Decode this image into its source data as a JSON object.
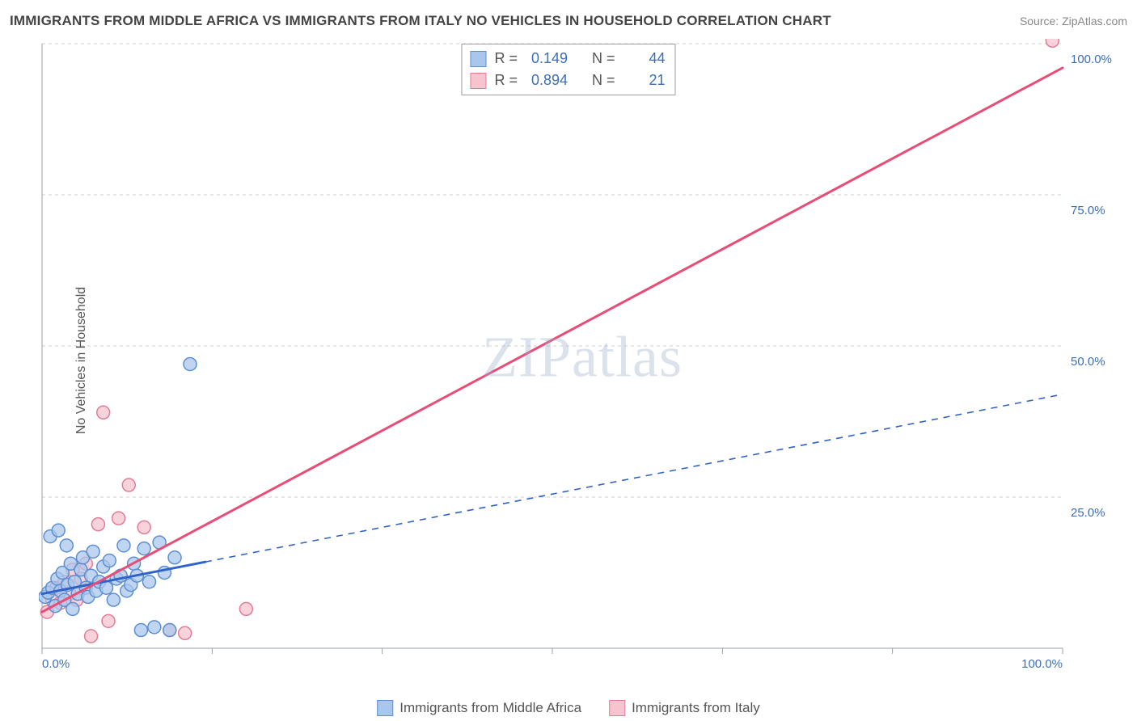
{
  "title": "IMMIGRANTS FROM MIDDLE AFRICA VS IMMIGRANTS FROM ITALY NO VEHICLES IN HOUSEHOLD CORRELATION CHART",
  "source": "Source: ZipAtlas.com",
  "watermark": "ZIPatlas",
  "ylabel": "No Vehicles in Household",
  "chart": {
    "type": "scatter-correlation",
    "background_color": "#ffffff",
    "grid_color": "#cfcfcf",
    "axis_color": "#9aa0a6",
    "axis_label_color": "#3b6fb6",
    "xlim": [
      0,
      100
    ],
    "ylim": [
      0,
      100
    ],
    "x_ticks": [
      0,
      16.67,
      33.33,
      50,
      66.67,
      83.33,
      100
    ],
    "x_tick_labels_shown": {
      "0": "0.0%",
      "100": "100.0%"
    },
    "y_ticks": [
      0,
      25,
      50,
      75,
      100
    ],
    "y_tick_labels": [
      "",
      "25.0%",
      "50.0%",
      "75.0%",
      "100.0%"
    ],
    "marker_radius": 8,
    "marker_stroke_width": 1.5,
    "trend_line_width": 2
  },
  "series": {
    "africa": {
      "label": "Immigrants from Middle Africa",
      "fill": "#a9c7ec",
      "stroke": "#5e8fd0",
      "trend_color": "#2f63c9",
      "trend_solid_to_x": 16,
      "trend_y_at_0": 9,
      "trend_y_at_100": 42,
      "r": "0.149",
      "n": "44",
      "points": [
        [
          0.3,
          8.5
        ],
        [
          0.6,
          9.2
        ],
        [
          1.0,
          10.0
        ],
        [
          1.3,
          7.0
        ],
        [
          1.5,
          11.5
        ],
        [
          1.8,
          9.5
        ],
        [
          2.0,
          12.5
        ],
        [
          2.2,
          8.0
        ],
        [
          2.5,
          10.5
        ],
        [
          2.8,
          14.0
        ],
        [
          3.0,
          6.5
        ],
        [
          3.2,
          11.0
        ],
        [
          3.5,
          9.0
        ],
        [
          3.8,
          13.0
        ],
        [
          4.0,
          15.0
        ],
        [
          4.3,
          10.0
        ],
        [
          4.5,
          8.5
        ],
        [
          4.8,
          12.0
        ],
        [
          5.0,
          16.0
        ],
        [
          5.3,
          9.5
        ],
        [
          5.6,
          11.0
        ],
        [
          6.0,
          13.5
        ],
        [
          6.3,
          10.0
        ],
        [
          6.6,
          14.5
        ],
        [
          7.0,
          8.0
        ],
        [
          7.3,
          11.5
        ],
        [
          7.7,
          12.0
        ],
        [
          8.0,
          17.0
        ],
        [
          8.3,
          9.5
        ],
        [
          8.7,
          10.5
        ],
        [
          9.0,
          14.0
        ],
        [
          9.3,
          12.0
        ],
        [
          9.7,
          3.0
        ],
        [
          10.0,
          16.5
        ],
        [
          10.5,
          11.0
        ],
        [
          11.0,
          3.5
        ],
        [
          11.5,
          17.5
        ],
        [
          12.0,
          12.5
        ],
        [
          12.5,
          3.0
        ],
        [
          13.0,
          15.0
        ],
        [
          0.8,
          18.5
        ],
        [
          1.6,
          19.5
        ],
        [
          2.4,
          17.0
        ],
        [
          14.5,
          47.0
        ]
      ]
    },
    "italy": {
      "label": "Immigrants from Italy",
      "fill": "#f6c4cf",
      "stroke": "#e27d95",
      "trend_color": "#e84d78",
      "trend_solid_to_x": 100,
      "trend_y_at_0": 6,
      "trend_y_at_100": 96,
      "r": "0.894",
      "n": "21",
      "points": [
        [
          0.5,
          6.0
        ],
        [
          1.0,
          8.0
        ],
        [
          1.4,
          10.0
        ],
        [
          1.8,
          7.5
        ],
        [
          2.2,
          11.0
        ],
        [
          2.7,
          9.0
        ],
        [
          3.0,
          13.0
        ],
        [
          3.4,
          8.0
        ],
        [
          3.8,
          11.5
        ],
        [
          4.3,
          14.0
        ],
        [
          4.8,
          2.0
        ],
        [
          5.5,
          20.5
        ],
        [
          6.0,
          39.0
        ],
        [
          6.5,
          4.5
        ],
        [
          7.5,
          21.5
        ],
        [
          8.5,
          27.0
        ],
        [
          10.0,
          20.0
        ],
        [
          12.5,
          3.0
        ],
        [
          14.0,
          2.5
        ],
        [
          20.0,
          6.5
        ],
        [
          99.0,
          100.5
        ]
      ]
    }
  },
  "stat_legend_labels": {
    "R": "R  =",
    "N": "N  ="
  },
  "bottom_legend_order": [
    "africa",
    "italy"
  ]
}
